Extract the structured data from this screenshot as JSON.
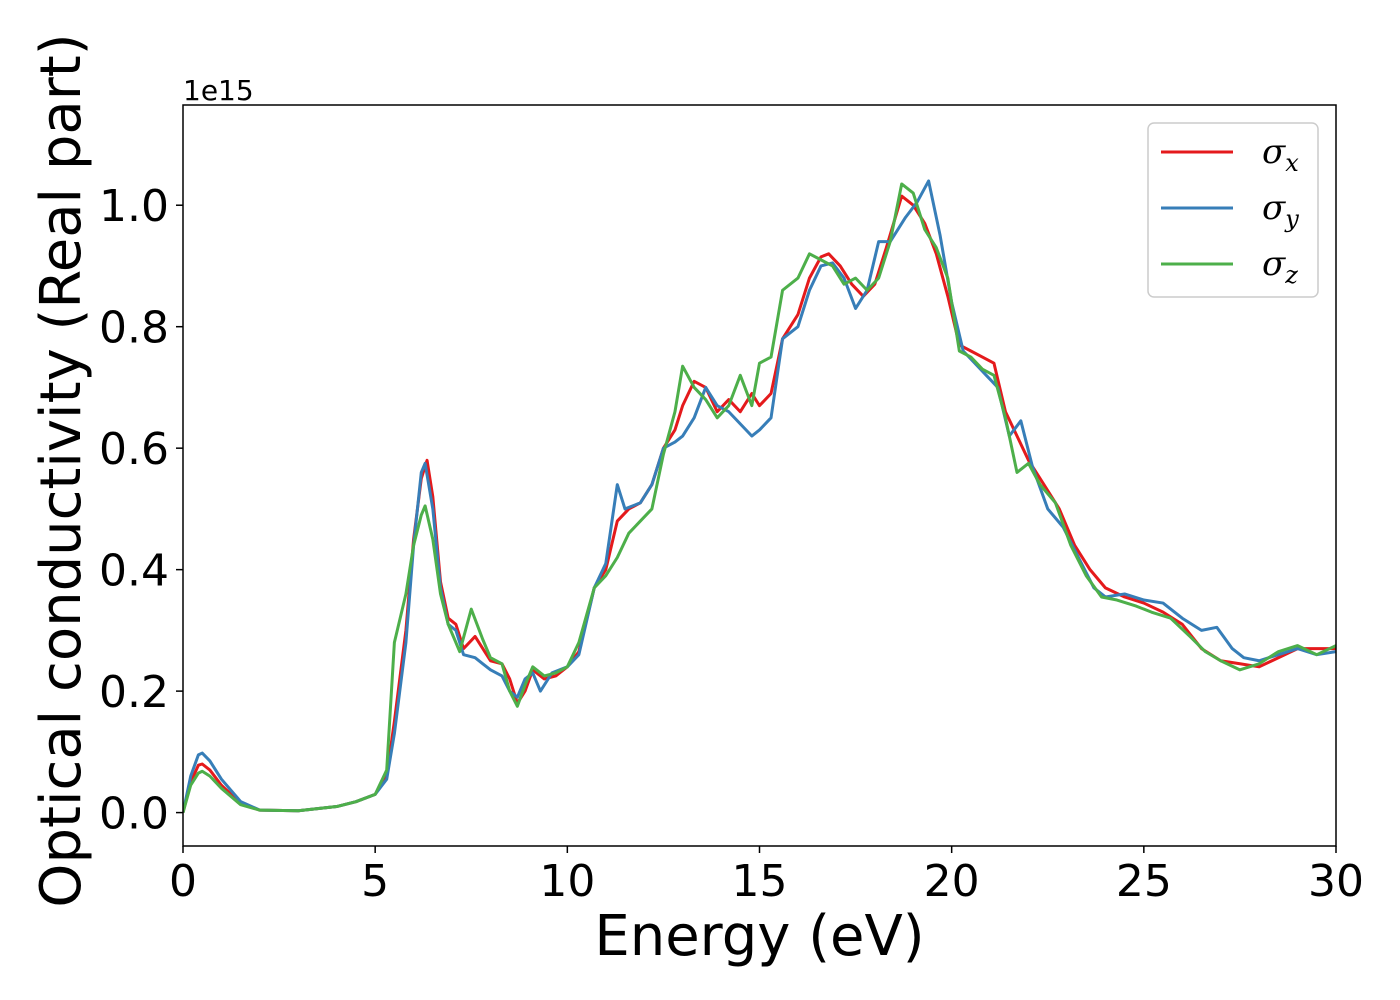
{
  "chart_data": {
    "type": "line",
    "title": "",
    "xlabel": "Energy (eV)",
    "ylabel": "Optical conductivity (Real part)",
    "y_offset_label": "1e15",
    "xlim": [
      0,
      30
    ],
    "ylim": [
      -0.055,
      1.165
    ],
    "x_ticks": [
      0,
      5,
      10,
      15,
      20,
      25,
      30
    ],
    "x_tick_labels": [
      "0",
      "5",
      "10",
      "15",
      "20",
      "25",
      "30"
    ],
    "y_ticks": [
      0.0,
      0.2,
      0.4,
      0.6,
      0.8,
      1.0
    ],
    "y_tick_labels": [
      "0.0",
      "0.2",
      "0.4",
      "0.6",
      "0.8",
      "1.0"
    ],
    "grid": false,
    "legend_position": "top-right",
    "series": [
      {
        "name": "σx",
        "symbol": "σ",
        "subscript": "x",
        "color": "#e41a1c",
        "points": [
          [
            0,
            0.0
          ],
          [
            0.2,
            0.05
          ],
          [
            0.4,
            0.078
          ],
          [
            0.5,
            0.08
          ],
          [
            0.7,
            0.07
          ],
          [
            1.0,
            0.045
          ],
          [
            1.5,
            0.015
          ],
          [
            2.0,
            0.004
          ],
          [
            3.0,
            0.003
          ],
          [
            4.0,
            0.01
          ],
          [
            4.5,
            0.018
          ],
          [
            5.0,
            0.03
          ],
          [
            5.3,
            0.06
          ],
          [
            5.5,
            0.15
          ],
          [
            5.8,
            0.3
          ],
          [
            6.0,
            0.45
          ],
          [
            6.2,
            0.55
          ],
          [
            6.35,
            0.58
          ],
          [
            6.5,
            0.52
          ],
          [
            6.7,
            0.38
          ],
          [
            6.9,
            0.32
          ],
          [
            7.1,
            0.31
          ],
          [
            7.3,
            0.27
          ],
          [
            7.6,
            0.29
          ],
          [
            7.8,
            0.27
          ],
          [
            8.0,
            0.25
          ],
          [
            8.3,
            0.245
          ],
          [
            8.5,
            0.22
          ],
          [
            8.7,
            0.18
          ],
          [
            8.9,
            0.2
          ],
          [
            9.1,
            0.235
          ],
          [
            9.4,
            0.22
          ],
          [
            9.7,
            0.225
          ],
          [
            10.0,
            0.24
          ],
          [
            10.3,
            0.265
          ],
          [
            10.7,
            0.37
          ],
          [
            11.0,
            0.4
          ],
          [
            11.3,
            0.48
          ],
          [
            11.6,
            0.5
          ],
          [
            11.9,
            0.51
          ],
          [
            12.2,
            0.54
          ],
          [
            12.5,
            0.6
          ],
          [
            12.8,
            0.63
          ],
          [
            13.0,
            0.67
          ],
          [
            13.3,
            0.71
          ],
          [
            13.6,
            0.7
          ],
          [
            13.9,
            0.66
          ],
          [
            14.2,
            0.68
          ],
          [
            14.5,
            0.66
          ],
          [
            14.8,
            0.69
          ],
          [
            15.0,
            0.67
          ],
          [
            15.3,
            0.69
          ],
          [
            15.6,
            0.78
          ],
          [
            16.0,
            0.82
          ],
          [
            16.3,
            0.88
          ],
          [
            16.6,
            0.915
          ],
          [
            16.8,
            0.92
          ],
          [
            17.1,
            0.9
          ],
          [
            17.4,
            0.87
          ],
          [
            17.7,
            0.85
          ],
          [
            18.0,
            0.87
          ],
          [
            18.3,
            0.93
          ],
          [
            18.7,
            1.015
          ],
          [
            19.0,
            1.0
          ],
          [
            19.3,
            0.97
          ],
          [
            19.6,
            0.92
          ],
          [
            19.9,
            0.85
          ],
          [
            20.2,
            0.77
          ],
          [
            20.5,
            0.76
          ],
          [
            20.8,
            0.75
          ],
          [
            21.1,
            0.74
          ],
          [
            21.4,
            0.66
          ],
          [
            21.7,
            0.62
          ],
          [
            22.0,
            0.58
          ],
          [
            22.4,
            0.54
          ],
          [
            22.8,
            0.5
          ],
          [
            23.2,
            0.44
          ],
          [
            23.6,
            0.4
          ],
          [
            24.0,
            0.37
          ],
          [
            24.5,
            0.355
          ],
          [
            25.0,
            0.345
          ],
          [
            25.5,
            0.33
          ],
          [
            26.0,
            0.31
          ],
          [
            26.5,
            0.27
          ],
          [
            27.0,
            0.25
          ],
          [
            27.5,
            0.245
          ],
          [
            28.0,
            0.24
          ],
          [
            28.5,
            0.255
          ],
          [
            29.0,
            0.27
          ],
          [
            29.5,
            0.27
          ],
          [
            30.0,
            0.27
          ]
        ]
      },
      {
        "name": "σy",
        "symbol": "σ",
        "subscript": "y",
        "color": "#377eb8",
        "points": [
          [
            0,
            0.0
          ],
          [
            0.2,
            0.06
          ],
          [
            0.4,
            0.095
          ],
          [
            0.5,
            0.098
          ],
          [
            0.7,
            0.085
          ],
          [
            1.0,
            0.055
          ],
          [
            1.5,
            0.018
          ],
          [
            2.0,
            0.004
          ],
          [
            3.0,
            0.003
          ],
          [
            4.0,
            0.01
          ],
          [
            4.5,
            0.018
          ],
          [
            5.0,
            0.03
          ],
          [
            5.3,
            0.055
          ],
          [
            5.5,
            0.13
          ],
          [
            5.8,
            0.28
          ],
          [
            6.0,
            0.44
          ],
          [
            6.2,
            0.56
          ],
          [
            6.3,
            0.575
          ],
          [
            6.5,
            0.5
          ],
          [
            6.7,
            0.37
          ],
          [
            6.9,
            0.31
          ],
          [
            7.1,
            0.3
          ],
          [
            7.3,
            0.26
          ],
          [
            7.6,
            0.255
          ],
          [
            7.8,
            0.245
          ],
          [
            8.0,
            0.235
          ],
          [
            8.3,
            0.225
          ],
          [
            8.5,
            0.2
          ],
          [
            8.7,
            0.19
          ],
          [
            8.9,
            0.22
          ],
          [
            9.1,
            0.23
          ],
          [
            9.3,
            0.2
          ],
          [
            9.6,
            0.23
          ],
          [
            10.0,
            0.24
          ],
          [
            10.3,
            0.26
          ],
          [
            10.7,
            0.37
          ],
          [
            11.0,
            0.41
          ],
          [
            11.3,
            0.54
          ],
          [
            11.5,
            0.5
          ],
          [
            11.9,
            0.51
          ],
          [
            12.2,
            0.54
          ],
          [
            12.5,
            0.6
          ],
          [
            12.8,
            0.61
          ],
          [
            13.0,
            0.62
          ],
          [
            13.3,
            0.65
          ],
          [
            13.6,
            0.7
          ],
          [
            13.9,
            0.67
          ],
          [
            14.2,
            0.66
          ],
          [
            14.5,
            0.64
          ],
          [
            14.8,
            0.62
          ],
          [
            15.0,
            0.63
          ],
          [
            15.3,
            0.65
          ],
          [
            15.6,
            0.78
          ],
          [
            16.0,
            0.8
          ],
          [
            16.3,
            0.86
          ],
          [
            16.6,
            0.9
          ],
          [
            16.9,
            0.905
          ],
          [
            17.2,
            0.88
          ],
          [
            17.5,
            0.83
          ],
          [
            17.8,
            0.86
          ],
          [
            18.1,
            0.94
          ],
          [
            18.4,
            0.94
          ],
          [
            18.8,
            0.98
          ],
          [
            19.1,
            1.005
          ],
          [
            19.4,
            1.04
          ],
          [
            19.7,
            0.95
          ],
          [
            20.0,
            0.84
          ],
          [
            20.3,
            0.76
          ],
          [
            20.6,
            0.74
          ],
          [
            20.9,
            0.72
          ],
          [
            21.2,
            0.7
          ],
          [
            21.5,
            0.62
          ],
          [
            21.8,
            0.645
          ],
          [
            22.1,
            0.57
          ],
          [
            22.5,
            0.5
          ],
          [
            22.9,
            0.47
          ],
          [
            23.3,
            0.42
          ],
          [
            23.7,
            0.37
          ],
          [
            24.0,
            0.355
          ],
          [
            24.5,
            0.36
          ],
          [
            25.0,
            0.35
          ],
          [
            25.5,
            0.345
          ],
          [
            26.0,
            0.32
          ],
          [
            26.5,
            0.3
          ],
          [
            26.9,
            0.305
          ],
          [
            27.3,
            0.27
          ],
          [
            27.6,
            0.255
          ],
          [
            28.0,
            0.25
          ],
          [
            28.5,
            0.26
          ],
          [
            29.0,
            0.27
          ],
          [
            29.5,
            0.26
          ],
          [
            30.0,
            0.265
          ]
        ]
      },
      {
        "name": "σz",
        "symbol": "σ",
        "subscript": "z",
        "color": "#4daf4a",
        "points": [
          [
            0,
            0.0
          ],
          [
            0.2,
            0.045
          ],
          [
            0.4,
            0.065
          ],
          [
            0.5,
            0.068
          ],
          [
            0.7,
            0.06
          ],
          [
            1.0,
            0.04
          ],
          [
            1.5,
            0.013
          ],
          [
            2.0,
            0.004
          ],
          [
            3.0,
            0.003
          ],
          [
            4.0,
            0.01
          ],
          [
            4.5,
            0.018
          ],
          [
            5.0,
            0.03
          ],
          [
            5.3,
            0.07
          ],
          [
            5.5,
            0.28
          ],
          [
            5.8,
            0.36
          ],
          [
            6.0,
            0.44
          ],
          [
            6.2,
            0.49
          ],
          [
            6.3,
            0.505
          ],
          [
            6.5,
            0.45
          ],
          [
            6.7,
            0.36
          ],
          [
            6.9,
            0.31
          ],
          [
            7.2,
            0.265
          ],
          [
            7.5,
            0.335
          ],
          [
            7.8,
            0.285
          ],
          [
            8.0,
            0.255
          ],
          [
            8.3,
            0.245
          ],
          [
            8.5,
            0.2
          ],
          [
            8.7,
            0.175
          ],
          [
            8.9,
            0.21
          ],
          [
            9.1,
            0.24
          ],
          [
            9.4,
            0.225
          ],
          [
            9.7,
            0.23
          ],
          [
            10.0,
            0.24
          ],
          [
            10.3,
            0.28
          ],
          [
            10.7,
            0.37
          ],
          [
            11.0,
            0.39
          ],
          [
            11.3,
            0.42
          ],
          [
            11.6,
            0.46
          ],
          [
            11.9,
            0.48
          ],
          [
            12.2,
            0.5
          ],
          [
            12.5,
            0.59
          ],
          [
            12.8,
            0.66
          ],
          [
            13.0,
            0.735
          ],
          [
            13.3,
            0.7
          ],
          [
            13.6,
            0.68
          ],
          [
            13.9,
            0.65
          ],
          [
            14.2,
            0.67
          ],
          [
            14.5,
            0.72
          ],
          [
            14.8,
            0.67
          ],
          [
            15.0,
            0.74
          ],
          [
            15.3,
            0.75
          ],
          [
            15.6,
            0.86
          ],
          [
            16.0,
            0.88
          ],
          [
            16.3,
            0.92
          ],
          [
            16.6,
            0.91
          ],
          [
            16.9,
            0.9
          ],
          [
            17.2,
            0.87
          ],
          [
            17.5,
            0.88
          ],
          [
            17.8,
            0.86
          ],
          [
            18.1,
            0.88
          ],
          [
            18.4,
            0.94
          ],
          [
            18.7,
            1.035
          ],
          [
            19.0,
            1.02
          ],
          [
            19.3,
            0.96
          ],
          [
            19.6,
            0.93
          ],
          [
            19.9,
            0.88
          ],
          [
            20.2,
            0.76
          ],
          [
            20.5,
            0.75
          ],
          [
            20.8,
            0.73
          ],
          [
            21.1,
            0.72
          ],
          [
            21.4,
            0.65
          ],
          [
            21.7,
            0.56
          ],
          [
            22.0,
            0.575
          ],
          [
            22.3,
            0.54
          ],
          [
            22.7,
            0.51
          ],
          [
            23.1,
            0.44
          ],
          [
            23.5,
            0.39
          ],
          [
            23.9,
            0.355
          ],
          [
            24.3,
            0.35
          ],
          [
            24.8,
            0.34
          ],
          [
            25.2,
            0.33
          ],
          [
            25.7,
            0.32
          ],
          [
            26.2,
            0.29
          ],
          [
            26.6,
            0.265
          ],
          [
            27.0,
            0.25
          ],
          [
            27.5,
            0.235
          ],
          [
            28.0,
            0.245
          ],
          [
            28.5,
            0.265
          ],
          [
            29.0,
            0.275
          ],
          [
            29.5,
            0.26
          ],
          [
            30.0,
            0.275
          ]
        ]
      }
    ]
  }
}
